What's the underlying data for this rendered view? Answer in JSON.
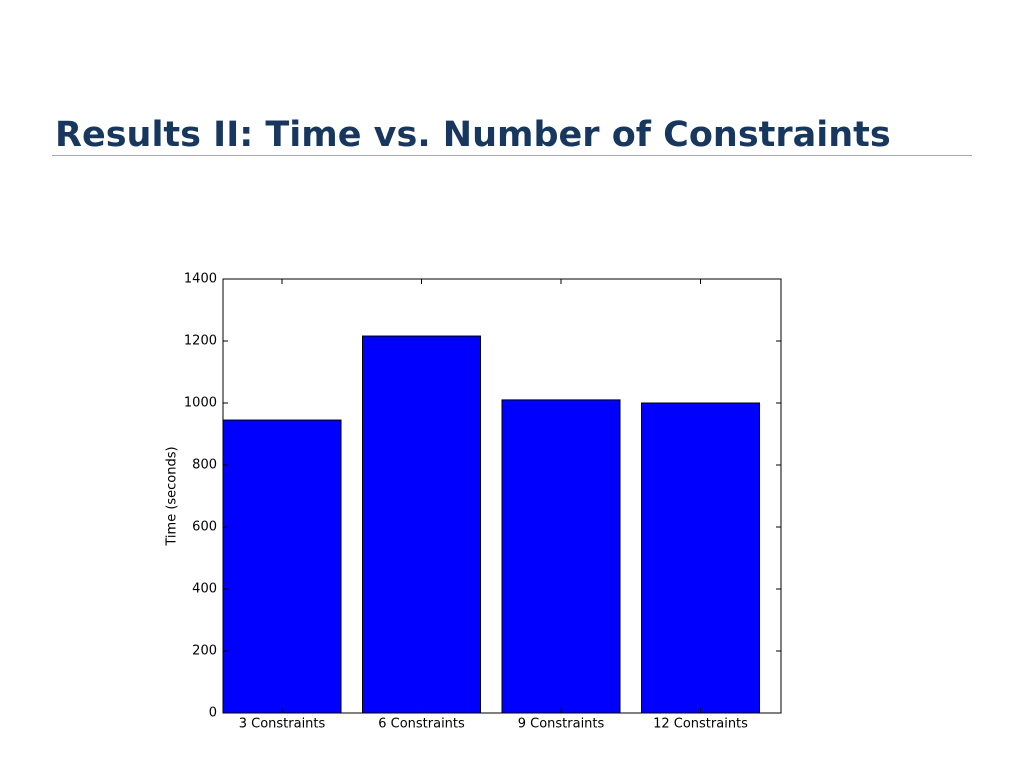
{
  "chart_data": {
    "type": "bar",
    "title": "Results II: Time vs. Number of Constraints",
    "ylabel": "Time (seconds)",
    "categories": [
      "3 Constraints",
      "6 Constraints",
      "9 Constraints",
      "12 Constraints"
    ],
    "values": [
      945,
      1216,
      1010,
      1000
    ],
    "color": "#0000ff",
    "ylim": [
      0,
      1400
    ],
    "yticks": [
      0,
      200,
      400,
      600,
      800,
      1000,
      1200,
      1400
    ],
    "grid": false
  }
}
